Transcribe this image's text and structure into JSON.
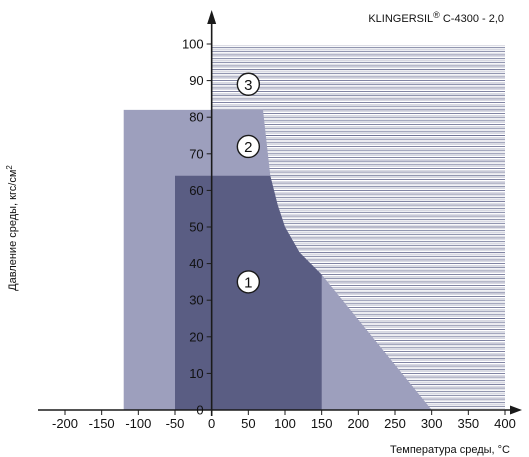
{
  "chart_data": {
    "type": "area",
    "title": "",
    "product": {
      "name": "KLINGERSIL",
      "registered_mark": "®",
      "code": " C-4300 - 2,0"
    },
    "xlabel": "Температура среды, °C",
    "ylabel": "Давление среды, кгс/см",
    "ylabel_superscript": "2",
    "xlim": [
      -200,
      400
    ],
    "ylim": [
      0,
      100
    ],
    "x_ticks": [
      -200,
      -150,
      -100,
      -50,
      0,
      50,
      100,
      150,
      200,
      250,
      300,
      350,
      400
    ],
    "y_ticks": [
      0,
      10,
      20,
      30,
      40,
      50,
      60,
      70,
      80,
      90,
      100
    ],
    "grid": "horizontal",
    "series": [
      {
        "zone_label": "3",
        "color": "#ffffff",
        "hatch_color": "#6f7396",
        "points": [
          [
            -200,
            0
          ],
          [
            400,
            0
          ],
          [
            400,
            100
          ],
          [
            -200,
            100
          ]
        ],
        "label_at": [
          50,
          89
        ]
      },
      {
        "zone_label": "2",
        "color": "#9d9fbd",
        "points": [
          [
            -120,
            0
          ],
          [
            300,
            0
          ],
          [
            150,
            37
          ],
          [
            120,
            43
          ],
          [
            100,
            50
          ],
          [
            90,
            56
          ],
          [
            80,
            64
          ],
          [
            70,
            82
          ],
          [
            -120,
            82
          ]
        ],
        "label_at": [
          50,
          72
        ]
      },
      {
        "zone_label": "1",
        "color": "#5a5d83",
        "points": [
          [
            -50,
            0
          ],
          [
            150,
            0
          ],
          [
            150,
            37
          ],
          [
            120,
            43
          ],
          [
            100,
            50
          ],
          [
            90,
            56
          ],
          [
            80,
            64
          ],
          [
            -50,
            64
          ]
        ],
        "label_at": [
          50,
          35
        ]
      }
    ],
    "colors": {
      "axis": "#1a1a1a",
      "text": "#111111",
      "label_circle": "#ffffff"
    }
  }
}
